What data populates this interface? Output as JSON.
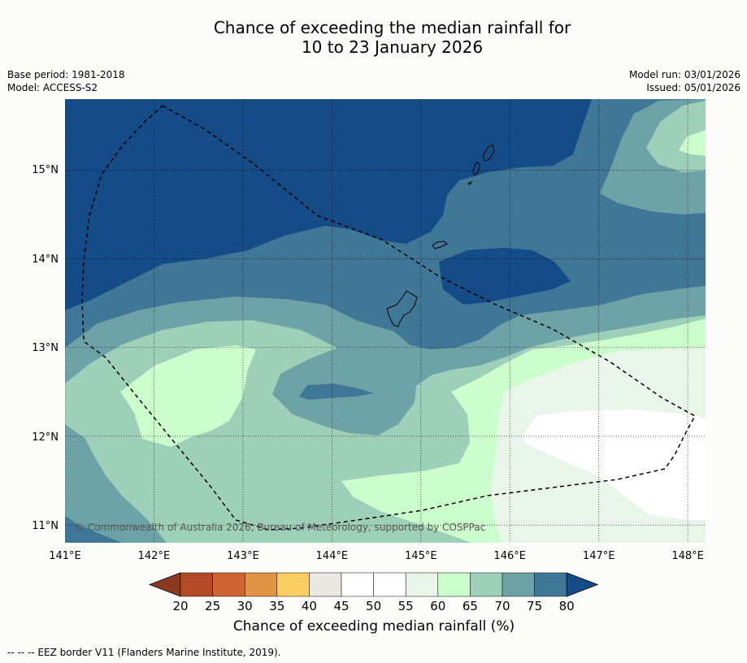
{
  "title": {
    "line1": "Chance of exceeding the median rainfall for",
    "line2": "10 to 23 January 2026"
  },
  "meta": {
    "base_period": "Base period: 1981-2018",
    "model": "Model: ACCESS-S2",
    "model_run": "Model run: 03/01/2026",
    "issued": "Issued: 05/01/2026"
  },
  "map": {
    "lon_range": [
      141.0,
      148.2
    ],
    "lat_range": [
      10.8,
      15.8
    ],
    "lon_ticks": [
      "141°E",
      "142°E",
      "143°E",
      "144°E",
      "145°E",
      "146°E",
      "147°E",
      "148°E"
    ],
    "lat_ticks": [
      "15°N",
      "14°N",
      "13°N",
      "12°N",
      "11°N"
    ],
    "copyright": "© Commonwealth of Australia 2026, Bureau of Meteorology, supported by COSPPac"
  },
  "colorbar": {
    "levels": [
      "20",
      "25",
      "30",
      "35",
      "40",
      "45",
      "50",
      "55",
      "60",
      "65",
      "70",
      "75",
      "80"
    ],
    "colors": [
      "#8b3a1f",
      "#b54a27",
      "#cf6532",
      "#e29445",
      "#fbcd62",
      "#e9e8e3",
      "#ffffff",
      "#ffffff",
      "#e9f5e9",
      "#ccfdcc",
      "#9ecfb8",
      "#6da3a6",
      "#417796",
      "#154b87"
    ],
    "label": "Chance of exceeding median rainfall (%)"
  },
  "footnote": "--  --  -- EEZ border V11 (Flanders Marine Institute, 2019)."
}
